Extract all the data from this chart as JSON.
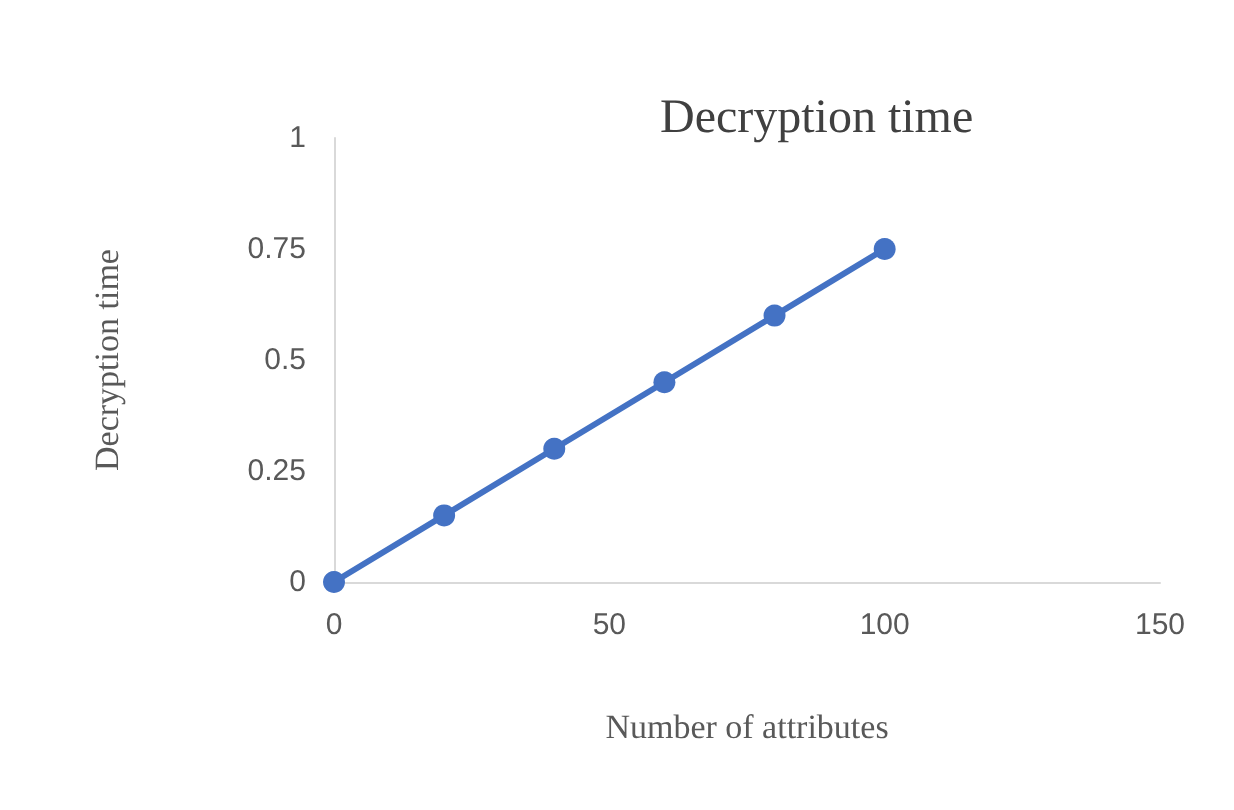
{
  "chart_data": {
    "type": "line",
    "title": "Decryption time",
    "xlabel": "Number of attributes",
    "ylabel": "Decryption time",
    "x": [
      0,
      20,
      40,
      60,
      80,
      100
    ],
    "series": [
      {
        "color": "#4472c4",
        "values": [
          0,
          0.15,
          0.3,
          0.45,
          0.6,
          0.75
        ]
      }
    ],
    "xlim": [
      0,
      150
    ],
    "xticks": [
      0,
      50,
      100,
      150
    ],
    "ylim": [
      0,
      1
    ],
    "yticks": [
      0,
      0.25,
      0.5,
      0.75,
      1
    ],
    "marker": "circle",
    "line_style": "solid"
  }
}
